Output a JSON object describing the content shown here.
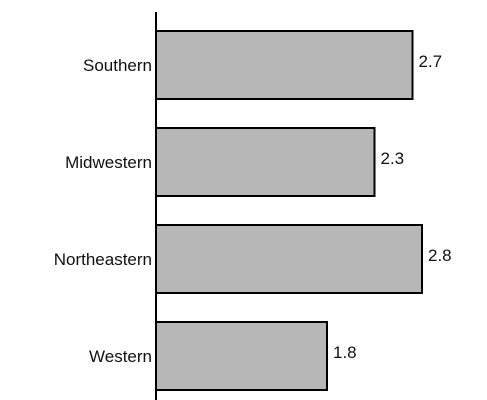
{
  "chart_data": {
    "type": "bar",
    "orientation": "horizontal",
    "categories": [
      "Southern",
      "Midwestern",
      "Northeastern",
      "Western"
    ],
    "values": [
      2.7,
      2.3,
      2.8,
      1.8
    ],
    "data_labels": [
      "2.7",
      "2.3",
      "2.8",
      "1.8"
    ],
    "title": "",
    "xlabel": "",
    "ylabel": "",
    "xlim": [
      0,
      3.0
    ],
    "grid": false,
    "colors": {
      "bar_fill": "#b7b7b7",
      "bar_stroke": "#000000"
    }
  }
}
